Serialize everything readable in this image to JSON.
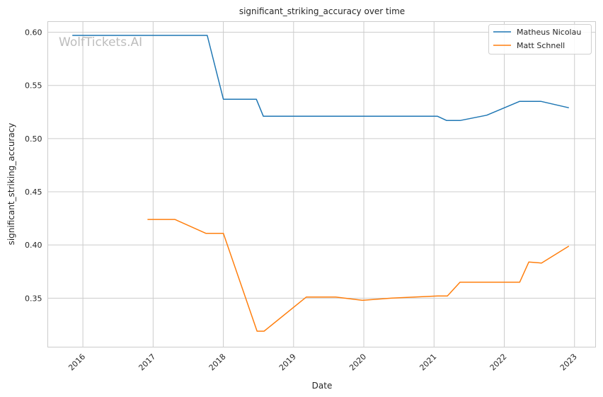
{
  "chart_data": {
    "type": "line",
    "title": "significant_striking_accuracy over time",
    "xlabel": "Date",
    "ylabel": "significant_striking_accuracy",
    "watermark": "WolfTickets.AI",
    "x_ticks": [
      "2016",
      "2017",
      "2018",
      "2019",
      "2020",
      "2021",
      "2022",
      "2023"
    ],
    "y_ticks": [
      "0.35",
      "0.40",
      "0.45",
      "0.50",
      "0.55",
      "0.60"
    ],
    "xlim": [
      2015.5,
      2023.3
    ],
    "ylim": [
      0.304,
      0.61
    ],
    "grid": true,
    "legend_position": "top-right",
    "series": [
      {
        "name": "Matheus Nicolau",
        "color": "#1f77b4",
        "points": [
          [
            2015.85,
            0.597
          ],
          [
            2017.77,
            0.597
          ],
          [
            2018.0,
            0.537
          ],
          [
            2018.47,
            0.537
          ],
          [
            2018.57,
            0.521
          ],
          [
            2021.05,
            0.521
          ],
          [
            2021.18,
            0.517
          ],
          [
            2021.37,
            0.517
          ],
          [
            2021.75,
            0.522
          ],
          [
            2022.22,
            0.535
          ],
          [
            2022.52,
            0.535
          ],
          [
            2022.92,
            0.529
          ]
        ]
      },
      {
        "name": "Matt Schnell",
        "color": "#ff7f0e",
        "points": [
          [
            2016.92,
            0.424
          ],
          [
            2017.31,
            0.424
          ],
          [
            2017.75,
            0.411
          ],
          [
            2018.0,
            0.411
          ],
          [
            2018.48,
            0.319
          ],
          [
            2018.58,
            0.319
          ],
          [
            2019.18,
            0.351
          ],
          [
            2019.6,
            0.351
          ],
          [
            2019.98,
            0.348
          ],
          [
            2020.4,
            0.35
          ],
          [
            2021.05,
            0.352
          ],
          [
            2021.19,
            0.352
          ],
          [
            2021.37,
            0.365
          ],
          [
            2022.22,
            0.365
          ],
          [
            2022.35,
            0.384
          ],
          [
            2022.53,
            0.383
          ],
          [
            2022.92,
            0.399
          ]
        ]
      }
    ]
  }
}
